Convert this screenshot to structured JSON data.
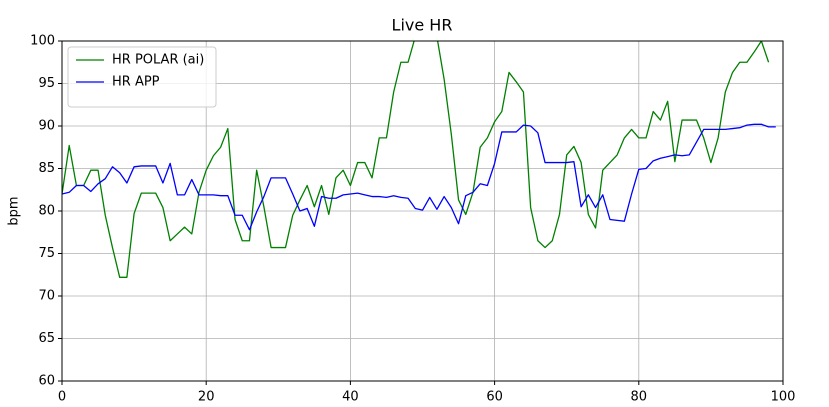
{
  "chart_data": {
    "type": "line",
    "title": "Live HR",
    "y_label": "bpm",
    "xlim": [
      0,
      100
    ],
    "xticks": [
      0,
      20,
      40,
      60,
      80,
      100
    ],
    "ylim": [
      60,
      100
    ],
    "yticks": [
      60,
      65,
      70,
      75,
      80,
      85,
      90,
      95,
      100
    ],
    "grid": true,
    "legend": "upper-left",
    "series": [
      {
        "name": "HR POLAR (ai)",
        "color": "#008000",
        "x": [
          0,
          1,
          2,
          3,
          4,
          5,
          6,
          7,
          8,
          9,
          10,
          11,
          12,
          13,
          14,
          15,
          16,
          17,
          18,
          19,
          20,
          21,
          22,
          23,
          24,
          25,
          26,
          27,
          28,
          29,
          30,
          31,
          32,
          33,
          34,
          35,
          36,
          37,
          38,
          39,
          40,
          41,
          42,
          43,
          44,
          45,
          46,
          47,
          48,
          49,
          50,
          51,
          52,
          53,
          54,
          55,
          56,
          57,
          58,
          59,
          60,
          61,
          62,
          63,
          64,
          65,
          66,
          67,
          68,
          69,
          70,
          71,
          72,
          73,
          74,
          75,
          76,
          77,
          78,
          79,
          80,
          81,
          82,
          83,
          84,
          85,
          86,
          87,
          88,
          89,
          90,
          91,
          92,
          93,
          94,
          95,
          96,
          97,
          98
        ],
        "values": [
          82,
          87.7,
          83,
          83,
          84.8,
          84.8,
          79.5,
          75.7,
          72.2,
          72.2,
          79.7,
          82.1,
          82.1,
          82.1,
          80.4,
          76.5,
          77.3,
          78.1,
          77.3,
          82.2,
          84.8,
          86.5,
          87.5,
          89.7,
          79,
          76.5,
          76.5,
          84.8,
          80.5,
          75.7,
          75.7,
          75.7,
          79.5,
          81.3,
          83,
          80.5,
          83,
          79.6,
          83.9,
          84.8,
          83,
          85.7,
          85.7,
          83.9,
          88.6,
          88.6,
          94,
          97.5,
          97.5,
          100.5,
          101.5,
          101.5,
          100.5,
          95.5,
          89,
          81.3,
          79.6,
          82.2,
          87.5,
          88.6,
          90.5,
          91.7,
          96.3,
          95.2,
          94,
          80.4,
          76.5,
          75.7,
          76.5,
          79.6,
          86.6,
          87.6,
          85.7,
          79.6,
          78,
          84.8,
          85.7,
          86.6,
          88.6,
          89.6,
          88.6,
          88.6,
          91.7,
          90.7,
          92.9,
          85.8,
          90.7,
          90.7,
          90.7,
          88.6,
          85.7,
          88.6,
          94,
          96.3,
          97.5,
          97.5,
          98.7,
          100,
          97.5
        ]
      },
      {
        "name": "HR APP",
        "color": "#0000ff",
        "x": [
          0,
          1,
          2,
          3,
          4,
          5,
          6,
          7,
          8,
          9,
          10,
          11,
          12,
          13,
          14,
          15,
          16,
          17,
          18,
          19,
          20,
          21,
          22,
          23,
          24,
          25,
          26,
          27,
          28,
          29,
          30,
          31,
          32,
          33,
          34,
          35,
          36,
          37,
          38,
          39,
          40,
          41,
          42,
          43,
          44,
          45,
          46,
          47,
          48,
          49,
          50,
          51,
          52,
          53,
          54,
          55,
          56,
          57,
          58,
          59,
          60,
          61,
          62,
          63,
          64,
          65,
          66,
          67,
          68,
          69,
          70,
          71,
          72,
          73,
          74,
          75,
          76,
          77,
          78,
          79,
          80,
          81,
          82,
          83,
          84,
          85,
          86,
          87,
          88,
          89,
          90,
          91,
          92,
          93,
          94,
          95,
          96,
          97,
          98,
          99
        ],
        "values": [
          82,
          82.2,
          83,
          83,
          82.3,
          83.2,
          83.8,
          85.2,
          84.5,
          83.3,
          85.2,
          85.3,
          85.3,
          85.3,
          83.3,
          85.6,
          81.9,
          81.9,
          83.7,
          81.9,
          81.9,
          81.9,
          81.8,
          81.8,
          79.5,
          79.5,
          77.8,
          79.9,
          81.7,
          83.9,
          83.9,
          83.9,
          82,
          80,
          80.3,
          78.2,
          81.7,
          81.5,
          81.5,
          81.9,
          82,
          82.1,
          81.9,
          81.7,
          81.7,
          81.6,
          81.8,
          81.6,
          81.5,
          80.3,
          80.1,
          81.6,
          80.2,
          81.7,
          80.4,
          78.5,
          81.8,
          82.2,
          83.2,
          83,
          85.6,
          89.3,
          89.3,
          89.3,
          90.1,
          90,
          89.2,
          85.7,
          85.7,
          85.7,
          85.7,
          85.8,
          80.5,
          81.9,
          80.4,
          81.9,
          79,
          78.9,
          78.8,
          82,
          84.9,
          85,
          85.9,
          86.2,
          86.4,
          86.6,
          86.5,
          86.6,
          88.1,
          89.6,
          89.6,
          89.6,
          89.6,
          89.7,
          89.8,
          90.1,
          90.2,
          90.2,
          89.9,
          89.9
        ]
      }
    ]
  }
}
